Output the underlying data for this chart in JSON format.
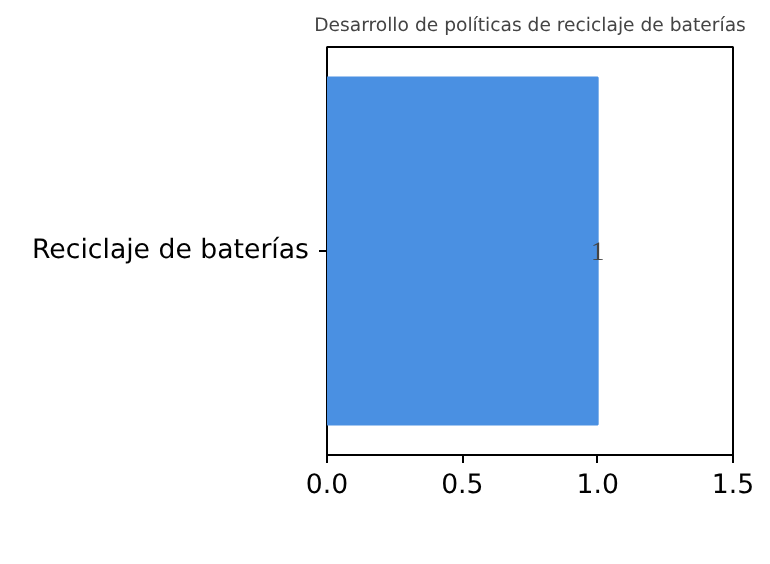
{
  "chart_data": {
    "type": "bar",
    "orientation": "horizontal",
    "title": "Desarrollo de políticas de reciclaje de baterías",
    "categories": [
      "Reciclaje de baterías"
    ],
    "values": [
      1
    ],
    "color": "#4a90e2",
    "xlim": [
      0,
      1.5
    ],
    "xticks": [
      {
        "value": 0,
        "label": "0.0"
      },
      {
        "value": 0.5,
        "label": "0.5"
      },
      {
        "value": 1,
        "label": "1.0"
      },
      {
        "value": 1.5,
        "label": "1.5"
      }
    ],
    "data_labels": true,
    "grid": false
  }
}
